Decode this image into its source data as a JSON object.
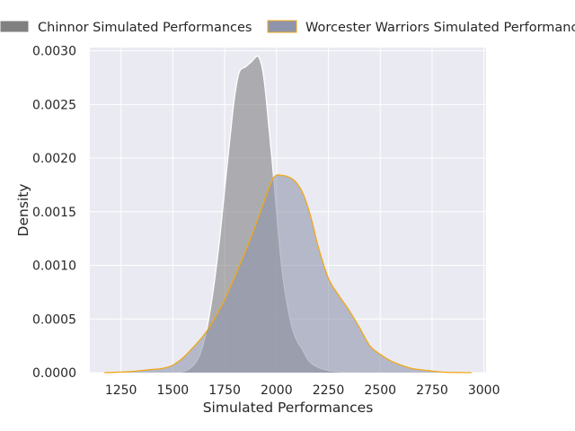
{
  "chart_data": {
    "type": "area",
    "xlabel": "Simulated Performances",
    "ylabel": "Density",
    "xlim": [
      1100,
      3010
    ],
    "ylim": [
      0,
      0.00303
    ],
    "x_ticks": [
      1250,
      1500,
      1750,
      2000,
      2250,
      2500,
      2750,
      3000
    ],
    "y_ticks": [
      0.0,
      0.0005,
      0.001,
      0.0015,
      0.002,
      0.0025,
      0.003
    ],
    "x_tick_labels": [
      "1250",
      "1500",
      "1750",
      "2000",
      "2250",
      "2500",
      "2750",
      "3000"
    ],
    "y_tick_labels": [
      "0.0000",
      "0.0005",
      "0.0010",
      "0.0015",
      "0.0020",
      "0.0025",
      "0.0030"
    ],
    "grid": true,
    "legend_placement": "top",
    "colors": {
      "background": "#eaeaf2",
      "grid": "#ffffff",
      "chinnor_fill": "#808080",
      "chinnor_edge": "#ffffff",
      "worcester_fill": "#8e95ab",
      "worcester_edge": "#f0a818"
    },
    "series": [
      {
        "name": "Chinnor Simulated Performances",
        "x": [
          1480,
          1550,
          1600,
          1640,
          1680,
          1720,
          1760,
          1790,
          1810,
          1825,
          1850,
          1880,
          1910,
          1930,
          1945,
          1960,
          1980,
          2000,
          2025,
          2050,
          2075,
          2100,
          2120,
          2140,
          2160,
          2200,
          2250,
          2300,
          2350,
          2400
        ],
        "y": [
          0.0,
          1e-05,
          7e-05,
          0.00022,
          0.00058,
          0.00115,
          0.0019,
          0.00245,
          0.00272,
          0.00282,
          0.00285,
          0.0029,
          0.00295,
          0.00285,
          0.00265,
          0.00235,
          0.00195,
          0.0015,
          0.00098,
          0.00065,
          0.00042,
          0.00029,
          0.00023,
          0.00016,
          0.0001,
          5e-05,
          2e-05,
          8e-06,
          2e-06,
          0.0
        ]
      },
      {
        "name": "Worcester Warriors Simulated Performances",
        "x": [
          1170,
          1250,
          1300,
          1350,
          1400,
          1450,
          1500,
          1550,
          1600,
          1650,
          1700,
          1750,
          1800,
          1850,
          1900,
          1950,
          1980,
          2000,
          2020,
          2050,
          2080,
          2100,
          2125,
          2150,
          2175,
          2200,
          2250,
          2300,
          2350,
          2400,
          2450,
          2500,
          2550,
          2600,
          2650,
          2700,
          2750,
          2800,
          2850,
          2940
        ],
        "y": [
          0.0,
          5e-06,
          1e-05,
          2e-05,
          3e-05,
          4e-05,
          7e-05,
          0.00014,
          0.00024,
          0.00035,
          0.0005,
          0.00068,
          0.0009,
          0.00113,
          0.00138,
          0.00165,
          0.0018,
          0.00184,
          0.00184,
          0.00183,
          0.0018,
          0.00176,
          0.00168,
          0.00155,
          0.00138,
          0.00118,
          0.00088,
          0.00072,
          0.00058,
          0.00042,
          0.00025,
          0.00017,
          0.00011,
          7e-05,
          4e-05,
          2.5e-05,
          1.5e-05,
          5e-06,
          2e-06,
          0.0
        ]
      }
    ]
  }
}
